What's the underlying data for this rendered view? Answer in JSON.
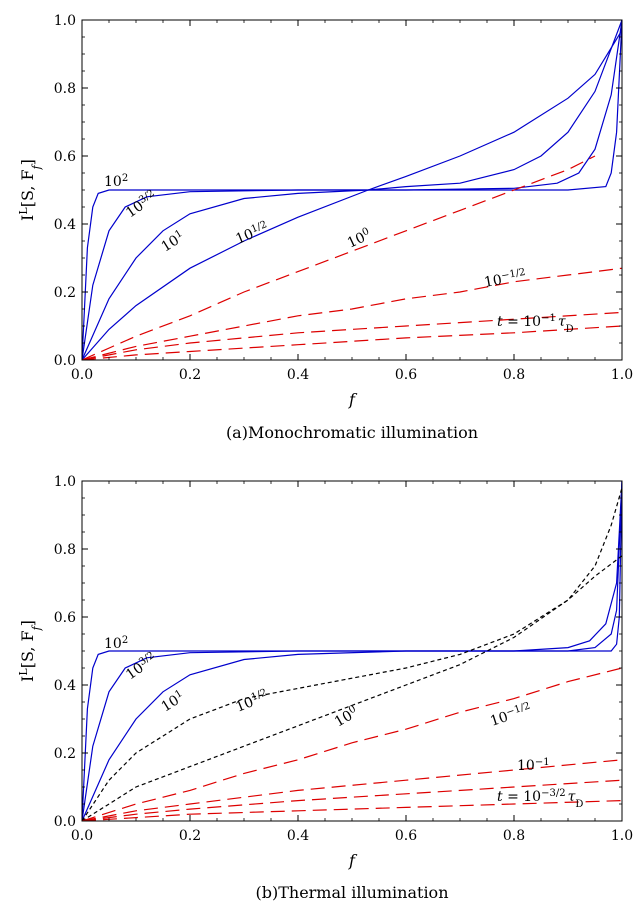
{
  "figure": {
    "panels": [
      {
        "caption": "(a)Monochromatic illumination",
        "ylabel": "I L[S, F f]",
        "xlabel": "f",
        "xticks": [
          "0.0",
          "0.2",
          "0.4",
          "0.6",
          "0.8",
          "1.0"
        ],
        "yticks": [
          "0.0",
          "0.2",
          "0.4",
          "0.6",
          "0.8",
          "1.0"
        ]
      },
      {
        "caption": "(b)Thermal illumination",
        "ylabel": "I L[S, F f]",
        "xlabel": "f",
        "xticks": [
          "0.0",
          "0.2",
          "0.4",
          "0.6",
          "0.8",
          "1.0"
        ],
        "yticks": [
          "0.0",
          "0.2",
          "0.4",
          "0.6",
          "0.8",
          "1.0"
        ]
      }
    ]
  },
  "chart_data": [
    {
      "type": "line",
      "title": "(a)Monochromatic illumination",
      "xlabel": "f",
      "ylabel": "I^L[S, F_f]",
      "xlim": [
        0,
        1
      ],
      "ylim": [
        0,
        1
      ],
      "grid": false,
      "colors": {
        "solid": "#0000cc",
        "dashed_long": "#dd0000"
      },
      "series": [
        {
          "label": "10^2",
          "style": "solid",
          "color": "#0000cc",
          "x": [
            0,
            0.01,
            0.02,
            0.03,
            0.05,
            0.1,
            0.3,
            0.5,
            0.7,
            0.9,
            0.97,
            0.98,
            0.99,
            1.0
          ],
          "y": [
            0,
            0.33,
            0.45,
            0.49,
            0.5,
            0.5,
            0.5,
            0.5,
            0.5,
            0.5,
            0.51,
            0.55,
            0.67,
            1.0
          ]
        },
        {
          "label": "10^{3/2}",
          "style": "solid",
          "color": "#0000cc",
          "x": [
            0,
            0.02,
            0.05,
            0.08,
            0.12,
            0.2,
            0.4,
            0.6,
            0.8,
            0.88,
            0.92,
            0.95,
            0.98,
            1.0
          ],
          "y": [
            0,
            0.22,
            0.38,
            0.45,
            0.48,
            0.495,
            0.5,
            0.5,
            0.505,
            0.52,
            0.55,
            0.62,
            0.78,
            1.0
          ]
        },
        {
          "label": "10^1",
          "style": "solid",
          "color": "#0000cc",
          "x": [
            0,
            0.05,
            0.1,
            0.15,
            0.2,
            0.3,
            0.4,
            0.53,
            0.6,
            0.7,
            0.8,
            0.85,
            0.9,
            0.95,
            1.0
          ],
          "y": [
            0,
            0.18,
            0.3,
            0.38,
            0.43,
            0.475,
            0.49,
            0.5,
            0.51,
            0.52,
            0.56,
            0.6,
            0.67,
            0.79,
            1.0
          ]
        },
        {
          "label": "10^{1/2}",
          "style": "solid",
          "color": "#0000cc",
          "x": [
            0,
            0.05,
            0.1,
            0.2,
            0.3,
            0.4,
            0.53,
            0.6,
            0.7,
            0.8,
            0.9,
            0.95,
            1.0
          ],
          "y": [
            0,
            0.09,
            0.16,
            0.27,
            0.35,
            0.42,
            0.5,
            0.54,
            0.6,
            0.67,
            0.77,
            0.84,
            0.97
          ]
        },
        {
          "label": "10^0",
          "style": "dashed",
          "color": "#dd0000",
          "x": [
            0,
            0.1,
            0.2,
            0.3,
            0.4,
            0.5,
            0.6,
            0.7,
            0.8,
            0.9,
            0.95
          ],
          "y": [
            0,
            0.07,
            0.13,
            0.2,
            0.26,
            0.32,
            0.38,
            0.44,
            0.5,
            0.56,
            0.6
          ]
        },
        {
          "label": "10^{-1/2}",
          "style": "dashed",
          "color": "#dd0000",
          "x": [
            0,
            0.1,
            0.2,
            0.3,
            0.4,
            0.5,
            0.6,
            0.7,
            0.8,
            0.9,
            1.0
          ],
          "y": [
            0,
            0.04,
            0.07,
            0.1,
            0.13,
            0.15,
            0.18,
            0.2,
            0.23,
            0.25,
            0.27
          ]
        },
        {
          "label": "t = 10^{-1} τ_D",
          "style": "dashed",
          "color": "#dd0000",
          "x": [
            0,
            0.1,
            0.2,
            0.4,
            0.6,
            0.8,
            1.0
          ],
          "y": [
            0,
            0.015,
            0.025,
            0.045,
            0.065,
            0.08,
            0.1
          ]
        },
        {
          "label": "",
          "style": "dashed",
          "color": "#dd0000",
          "x": [
            0,
            0.1,
            0.2,
            0.4,
            0.6,
            0.8,
            1.0
          ],
          "y": [
            0,
            0.03,
            0.05,
            0.08,
            0.1,
            0.12,
            0.14
          ]
        }
      ]
    },
    {
      "type": "line",
      "title": "(b)Thermal illumination",
      "xlabel": "f",
      "ylabel": "I^L[S, F_f]",
      "xlim": [
        0,
        1
      ],
      "ylim": [
        0,
        1
      ],
      "grid": false,
      "colors": {
        "solid": "#0000cc",
        "dashed_short": "#000000",
        "dashed_long": "#dd0000"
      },
      "series": [
        {
          "label": "10^2",
          "style": "solid",
          "color": "#0000cc",
          "x": [
            0,
            0.01,
            0.02,
            0.03,
            0.05,
            0.1,
            0.3,
            0.5,
            0.7,
            0.9,
            0.98,
            0.99,
            0.995,
            1.0
          ],
          "y": [
            0,
            0.33,
            0.45,
            0.49,
            0.5,
            0.5,
            0.5,
            0.5,
            0.5,
            0.5,
            0.5,
            0.52,
            0.6,
            1.0
          ]
        },
        {
          "label": "10^{3/2}",
          "style": "solid",
          "color": "#0000cc",
          "x": [
            0,
            0.02,
            0.05,
            0.08,
            0.12,
            0.2,
            0.4,
            0.6,
            0.8,
            0.9,
            0.95,
            0.98,
            0.99,
            1.0
          ],
          "y": [
            0,
            0.22,
            0.38,
            0.45,
            0.48,
            0.495,
            0.5,
            0.5,
            0.5,
            0.5,
            0.51,
            0.55,
            0.62,
            1.0
          ]
        },
        {
          "label": "10^1",
          "style": "solid",
          "color": "#0000cc",
          "x": [
            0,
            0.05,
            0.1,
            0.15,
            0.2,
            0.3,
            0.4,
            0.6,
            0.8,
            0.9,
            0.94,
            0.97,
            0.99,
            1.0
          ],
          "y": [
            0,
            0.18,
            0.3,
            0.38,
            0.43,
            0.475,
            0.49,
            0.5,
            0.5,
            0.51,
            0.53,
            0.58,
            0.7,
            1.0
          ]
        },
        {
          "label": "10^{1/2}",
          "style": "dotted",
          "color": "#000000",
          "x": [
            0,
            0.05,
            0.1,
            0.2,
            0.3,
            0.4,
            0.5,
            0.6,
            0.7,
            0.8,
            0.9,
            0.95,
            0.98,
            1.0
          ],
          "y": [
            0,
            0.12,
            0.2,
            0.3,
            0.36,
            0.39,
            0.42,
            0.45,
            0.49,
            0.55,
            0.65,
            0.75,
            0.87,
            0.98
          ]
        },
        {
          "label": "10^0",
          "style": "dotted",
          "color": "#000000",
          "x": [
            0,
            0.1,
            0.2,
            0.3,
            0.4,
            0.5,
            0.6,
            0.7,
            0.8,
            0.9,
            0.95,
            1.0
          ],
          "y": [
            0,
            0.1,
            0.16,
            0.22,
            0.28,
            0.34,
            0.4,
            0.46,
            0.54,
            0.65,
            0.72,
            0.78
          ]
        },
        {
          "label": "10^{-1/2}",
          "style": "dashed",
          "color": "#dd0000",
          "x": [
            0,
            0.1,
            0.2,
            0.3,
            0.4,
            0.5,
            0.6,
            0.7,
            0.8,
            0.9,
            1.0
          ],
          "y": [
            0,
            0.05,
            0.09,
            0.14,
            0.18,
            0.23,
            0.27,
            0.32,
            0.36,
            0.41,
            0.45
          ]
        },
        {
          "label": "10^{-1}",
          "style": "dashed",
          "color": "#dd0000",
          "x": [
            0,
            0.1,
            0.2,
            0.4,
            0.6,
            0.8,
            1.0
          ],
          "y": [
            0,
            0.03,
            0.05,
            0.09,
            0.12,
            0.15,
            0.18
          ]
        },
        {
          "label": "",
          "style": "dashed",
          "color": "#dd0000",
          "x": [
            0,
            0.1,
            0.2,
            0.4,
            0.6,
            0.8,
            1.0
          ],
          "y": [
            0,
            0.02,
            0.035,
            0.06,
            0.08,
            0.1,
            0.12
          ]
        },
        {
          "label": "t = 10^{-3/2} τ_D",
          "style": "dashed",
          "color": "#dd0000",
          "x": [
            0,
            0.1,
            0.2,
            0.4,
            0.6,
            0.8,
            1.0
          ],
          "y": [
            0,
            0.01,
            0.02,
            0.03,
            0.04,
            0.05,
            0.06
          ]
        }
      ]
    }
  ]
}
